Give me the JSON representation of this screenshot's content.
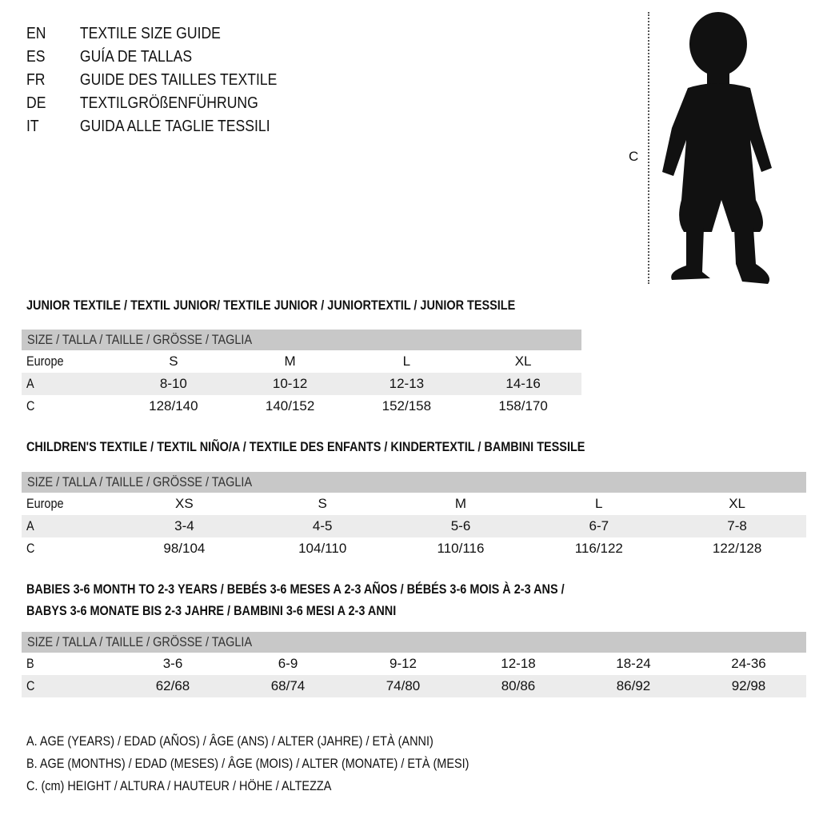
{
  "languages": [
    {
      "code": "EN",
      "text": "TEXTILE SIZE GUIDE"
    },
    {
      "code": "ES",
      "text": "GUÍA DE TALLAS"
    },
    {
      "code": "FR",
      "text": "GUIDE DES TAILLES TEXTILE"
    },
    {
      "code": "DE",
      "text": "TEXTILGRÖßENFÜHRUNG"
    },
    {
      "code": "IT",
      "text": "GUIDA ALLE TAGLIE TESSILI"
    }
  ],
  "figure_label": "C",
  "size_header": "SIZE / TALLA / TAILLE / GRÖSSE / TAGLIA",
  "junior": {
    "title": "JUNIOR TEXTILE / TEXTIL JUNIOR/ TEXTILE JUNIOR / JUNIORTEXTIL / JUNIOR TESSILE",
    "rows": [
      {
        "label": "Europe",
        "values": [
          "S",
          "M",
          "L",
          "XL"
        ]
      },
      {
        "label": "A",
        "values": [
          "8-10",
          "10-12",
          "12-13",
          "14-16"
        ]
      },
      {
        "label": "C",
        "values": [
          "128/140",
          "140/152",
          "152/158",
          "158/170"
        ]
      }
    ]
  },
  "children": {
    "title": "CHILDREN'S TEXTILE / TEXTIL NIÑO/A / TEXTILE DES ENFANTS / KINDERTEXTIL / BAMBINI TESSILE",
    "rows": [
      {
        "label": "Europe",
        "values": [
          "XS",
          "S",
          "M",
          "L",
          "XL"
        ]
      },
      {
        "label": "A",
        "values": [
          "3-4",
          "4-5",
          "5-6",
          "6-7",
          "7-8"
        ]
      },
      {
        "label": "C",
        "values": [
          "98/104",
          "104/110",
          "110/116",
          "116/122",
          "122/128"
        ]
      }
    ]
  },
  "babies": {
    "title_line1": "BABIES 3-6 MONTH TO 2-3 YEARS / BEBÉS 3-6 MESES A 2-3 AÑOS / BÉBÉS 3-6 MOIS À 2-3 ANS /",
    "title_line2": "BABYS 3-6 MONATE BIS 2-3 JAHRE / BAMBINI 3-6 MESI A 2-3 ANNI",
    "rows": [
      {
        "label": "B",
        "values": [
          "3-6",
          "6-9",
          "9-12",
          "12-18",
          "18-24",
          "24-36"
        ]
      },
      {
        "label": "C",
        "values": [
          "62/68",
          "68/74",
          "74/80",
          "80/86",
          "86/92",
          "92/98"
        ]
      }
    ]
  },
  "legend": [
    "A. AGE (YEARS) / EDAD (AÑOS) / ÂGE (ANS) / ALTER (JAHRE) / ETÀ (ANNI)",
    "B. AGE (MONTHS) / EDAD (MESES) / ÂGE (MOIS) / ALTER (MONATE) / ETÀ (MESI)",
    "C. (cm) HEIGHT / ALTURA / HAUTEUR / HÖHE / ALTEZZA"
  ]
}
